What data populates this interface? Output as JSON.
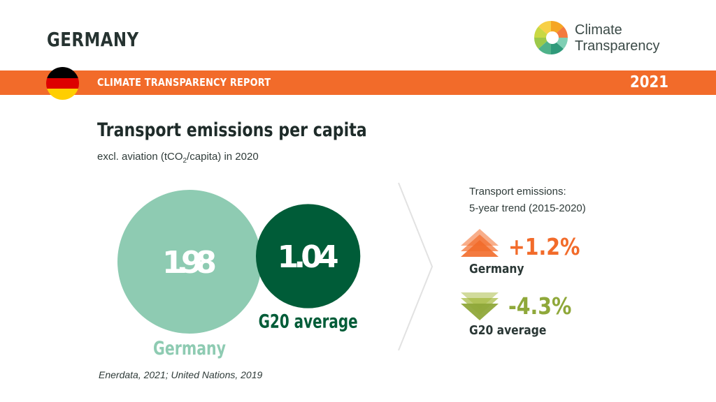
{
  "header": {
    "country": "GERMANY",
    "logo_line1": "Climate",
    "logo_line2": "Transparency"
  },
  "banner": {
    "label": "CLIMATE TRANSPARENCY REPORT",
    "year": "2021",
    "color": "#f26b2a"
  },
  "flag": {
    "colors": [
      "#000000",
      "#dd0000",
      "#ffce00"
    ]
  },
  "chart_data": {
    "type": "bubble",
    "title": "Transport emissions per capita",
    "subtitle_prefix": "excl. aviation (tCO",
    "subtitle_sub": "2",
    "subtitle_suffix": "/capita) in 2020",
    "categories": [
      "Germany",
      "G20 average"
    ],
    "values": [
      1.98,
      1.04
    ],
    "value_labels": [
      "1.98",
      "1.04"
    ],
    "colors": [
      "#8ecbb2",
      "#005c38"
    ],
    "label_colors": [
      "#8ecbb2",
      "#005c38"
    ]
  },
  "trend": {
    "title_line1": "Transport emissions:",
    "title_line2": "5-year trend (2015-2020)",
    "items": [
      {
        "label": "Germany",
        "value": "+1.2%",
        "direction": "up",
        "color": "#f26b2a"
      },
      {
        "label": "G20 average",
        "value": "-4.3%",
        "direction": "down",
        "color": "#8fa83a"
      }
    ]
  },
  "source": "Enerdata, 2021; United Nations, 2019"
}
